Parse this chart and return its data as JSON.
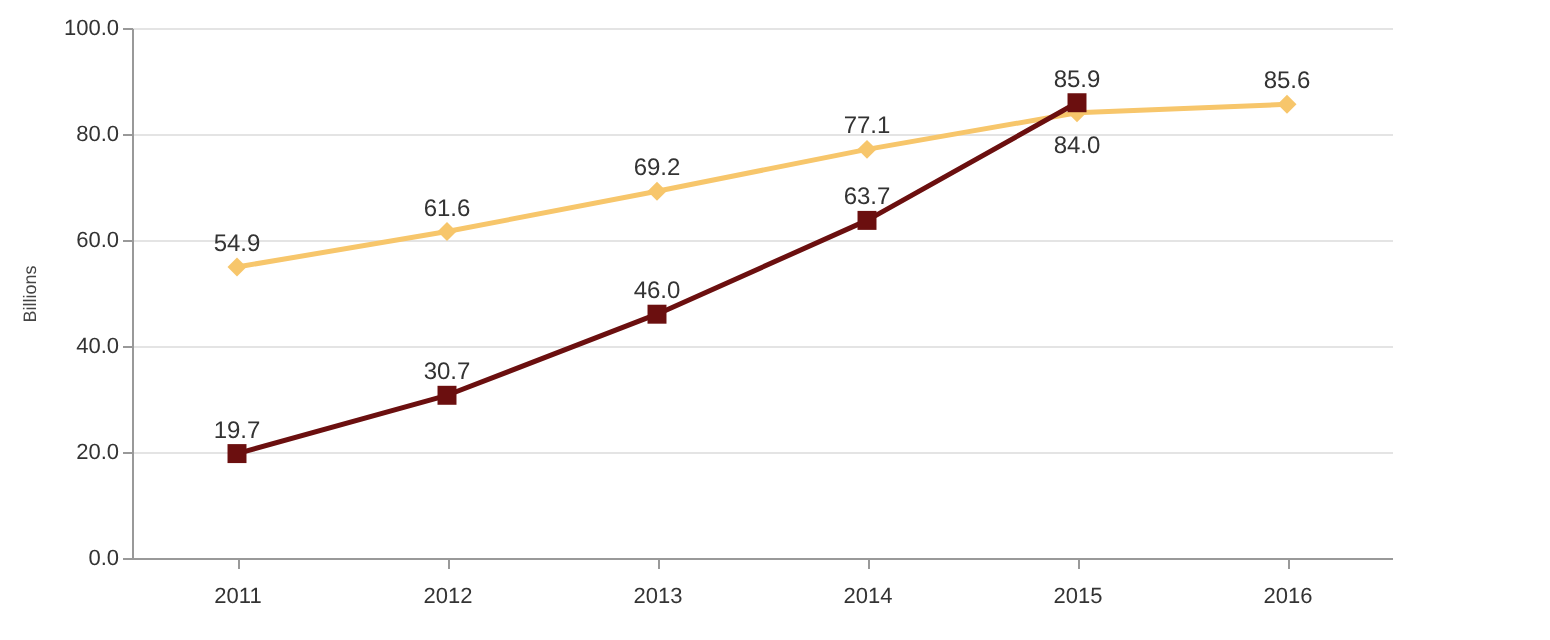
{
  "chart_data": {
    "type": "line",
    "ylabel": "Billions",
    "categories": [
      "2011",
      "2012",
      "2013",
      "2014",
      "2015",
      "2016"
    ],
    "series": [
      {
        "color": "#f7c66b",
        "marker": "diamond",
        "values": [
          54.9,
          61.6,
          69.2,
          77.1,
          84.0,
          85.6
        ],
        "value_labels": [
          "54.9",
          "61.6",
          "69.2",
          "77.1",
          "84.0",
          "85.6"
        ]
      },
      {
        "color": "#6b0f0f",
        "marker": "square",
        "values": [
          19.7,
          30.7,
          46.0,
          63.7,
          85.9,
          null
        ],
        "value_labels": [
          "19.7",
          "30.7",
          "46.0",
          "63.7",
          "85.9",
          null
        ]
      }
    ],
    "ylim": [
      0,
      100
    ],
    "yticks": [
      {
        "value": 0,
        "label": "0.0"
      },
      {
        "value": 20,
        "label": "20.0"
      },
      {
        "value": 40,
        "label": "40.0"
      },
      {
        "value": 60,
        "label": "60.0"
      },
      {
        "value": 80,
        "label": "80.0"
      },
      {
        "value": 100,
        "label": "100.0"
      }
    ],
    "grid": "y"
  }
}
